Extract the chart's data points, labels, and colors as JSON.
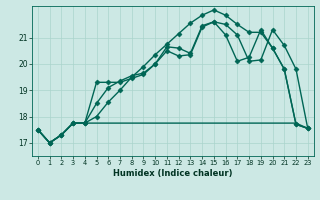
{
  "title": "",
  "xlabel": "Humidex (Indice chaleur)",
  "background_color": "#cce8e4",
  "grid_color": "#aad4cc",
  "line_color": "#006655",
  "xlim": [
    -0.5,
    23.5
  ],
  "ylim": [
    16.5,
    22.2
  ],
  "xticks": [
    0,
    1,
    2,
    3,
    4,
    5,
    6,
    7,
    8,
    9,
    10,
    11,
    12,
    13,
    14,
    15,
    16,
    17,
    18,
    19,
    20,
    21,
    22,
    23
  ],
  "yticks": [
    17,
    18,
    19,
    20,
    21
  ],
  "series": [
    {
      "x": [
        0,
        1,
        2,
        3,
        4,
        5,
        6,
        7,
        8,
        9,
        10,
        11,
        12,
        13,
        14,
        15,
        16,
        17,
        18,
        19,
        20,
        21,
        22,
        23
      ],
      "y": [
        17.5,
        17.0,
        17.3,
        17.75,
        17.75,
        19.3,
        19.3,
        19.3,
        19.45,
        19.6,
        20.0,
        20.65,
        20.6,
        20.4,
        21.45,
        21.6,
        21.5,
        21.1,
        20.1,
        20.15,
        21.3,
        20.7,
        19.8,
        17.55
      ],
      "marker": "D",
      "markersize": 2.5,
      "linewidth": 1.0
    },
    {
      "x": [
        0,
        1,
        2,
        3,
        4,
        5,
        6,
        7,
        8,
        9,
        10,
        11,
        12,
        13,
        14,
        15,
        16,
        17,
        18,
        19,
        20,
        21,
        22,
        23
      ],
      "y": [
        17.5,
        17.0,
        17.3,
        17.75,
        17.75,
        18.0,
        18.55,
        19.0,
        19.5,
        19.9,
        20.35,
        20.75,
        21.15,
        21.55,
        21.85,
        22.05,
        21.85,
        21.5,
        21.2,
        21.2,
        20.6,
        19.8,
        17.7,
        17.55
      ],
      "marker": "D",
      "markersize": 2.5,
      "linewidth": 1.0
    },
    {
      "x": [
        0,
        1,
        2,
        3,
        4,
        5,
        6,
        7,
        8,
        9,
        10,
        11,
        12,
        13,
        14,
        15,
        16,
        17,
        18,
        19,
        20,
        21,
        22,
        23
      ],
      "y": [
        17.5,
        17.0,
        17.3,
        17.75,
        17.75,
        18.5,
        19.1,
        19.35,
        19.55,
        19.65,
        20.0,
        20.5,
        20.3,
        20.35,
        21.4,
        21.6,
        21.1,
        20.1,
        20.25,
        21.3,
        20.6,
        19.8,
        17.7,
        17.55
      ],
      "marker": "D",
      "markersize": 2.5,
      "linewidth": 1.0
    },
    {
      "x": [
        0,
        1,
        2,
        3,
        4,
        5,
        6,
        7,
        8,
        9,
        10,
        11,
        12,
        13,
        14,
        15,
        16,
        17,
        18,
        19,
        20,
        21,
        22,
        23
      ],
      "y": [
        17.5,
        17.0,
        17.3,
        17.75,
        17.75,
        17.75,
        17.75,
        17.75,
        17.75,
        17.75,
        17.75,
        17.75,
        17.75,
        17.75,
        17.75,
        17.75,
        17.75,
        17.75,
        17.75,
        17.75,
        17.75,
        17.75,
        17.75,
        17.55
      ],
      "marker": null,
      "markersize": 0,
      "linewidth": 1.0
    }
  ]
}
